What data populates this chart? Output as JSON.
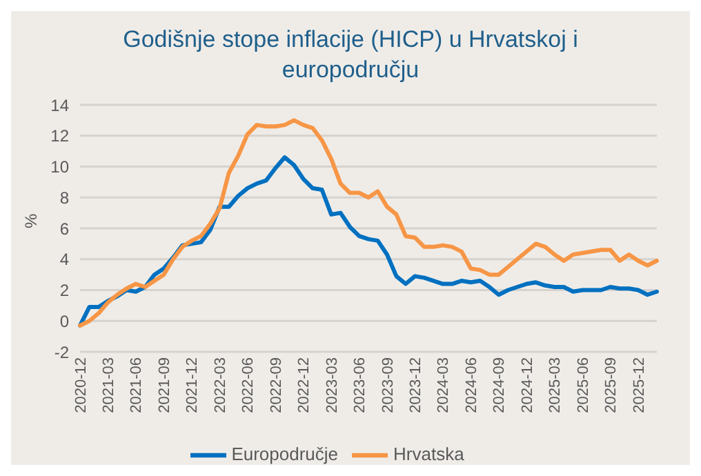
{
  "chart_data": {
    "type": "line",
    "title": "Godišnje stope inflacije (HICP) u Hrvatskoj i europodručju",
    "ylabel": "%",
    "categories": [
      "2020-12",
      null,
      null,
      "2021-03",
      null,
      null,
      "2021-06",
      null,
      null,
      "2021-09",
      null,
      null,
      "2021-12",
      null,
      null,
      "2022-03",
      null,
      null,
      "2022-06",
      null,
      null,
      "2022-09",
      null,
      null,
      "2022-12",
      null,
      null,
      "2023-03",
      null,
      null,
      "2023-06",
      null,
      null,
      "2023-09",
      null,
      null,
      "2023-12",
      null,
      null,
      "2024-03",
      null,
      null,
      "2024-06",
      null,
      null,
      "2024-09",
      null,
      null,
      "2024-12",
      null,
      null,
      "2025-03",
      null,
      null,
      "2025-06",
      null,
      null,
      "2025-09",
      null,
      null,
      "2025-12",
      null,
      null
    ],
    "series": [
      {
        "name": "Europodručje",
        "color": "#0070c0",
        "values": [
          -0.3,
          0.9,
          0.9,
          1.3,
          1.6,
          2.0,
          1.9,
          2.2,
          3.0,
          3.4,
          4.1,
          4.9,
          5.0,
          5.1,
          5.9,
          7.4,
          7.4,
          8.1,
          8.6,
          8.9,
          9.1,
          9.9,
          10.6,
          10.1,
          9.2,
          8.6,
          8.5,
          6.9,
          7.0,
          6.1,
          5.5,
          5.3,
          5.2,
          4.3,
          2.9,
          2.4,
          2.9,
          2.8,
          2.6,
          2.4,
          2.4,
          2.6,
          2.5,
          2.6,
          2.2,
          1.7,
          2.0,
          2.2,
          2.4,
          2.5,
          2.3,
          2.2,
          2.2,
          1.9,
          2.0,
          2.0,
          2.0,
          2.2,
          2.1,
          2.1,
          2.0,
          1.7,
          1.9
        ]
      },
      {
        "name": "Hrvatska",
        "color": "#f79646",
        "values": [
          -0.3,
          0.0,
          0.5,
          1.2,
          1.7,
          2.1,
          2.4,
          2.2,
          2.6,
          3.0,
          4.0,
          4.8,
          5.2,
          5.5,
          6.3,
          7.3,
          9.6,
          10.7,
          12.1,
          12.7,
          12.6,
          12.6,
          12.7,
          13.0,
          12.7,
          12.5,
          11.7,
          10.5,
          8.9,
          8.3,
          8.3,
          8.0,
          8.4,
          7.4,
          6.9,
          5.5,
          5.4,
          4.8,
          4.8,
          4.9,
          4.8,
          4.5,
          3.4,
          3.3,
          3.0,
          3.0,
          3.5,
          4.0,
          4.5,
          5.0,
          4.8,
          4.3,
          3.9,
          4.3,
          4.4,
          4.5,
          4.6,
          4.6,
          3.9,
          4.3,
          3.9,
          3.6,
          3.9
        ]
      }
    ],
    "ylim": [
      -2,
      14
    ],
    "yticks": [
      -2,
      0,
      2,
      4,
      6,
      8,
      10,
      12,
      14
    ],
    "grid": "y",
    "legend": "bottom",
    "marker": "none",
    "line_style": "solid"
  }
}
